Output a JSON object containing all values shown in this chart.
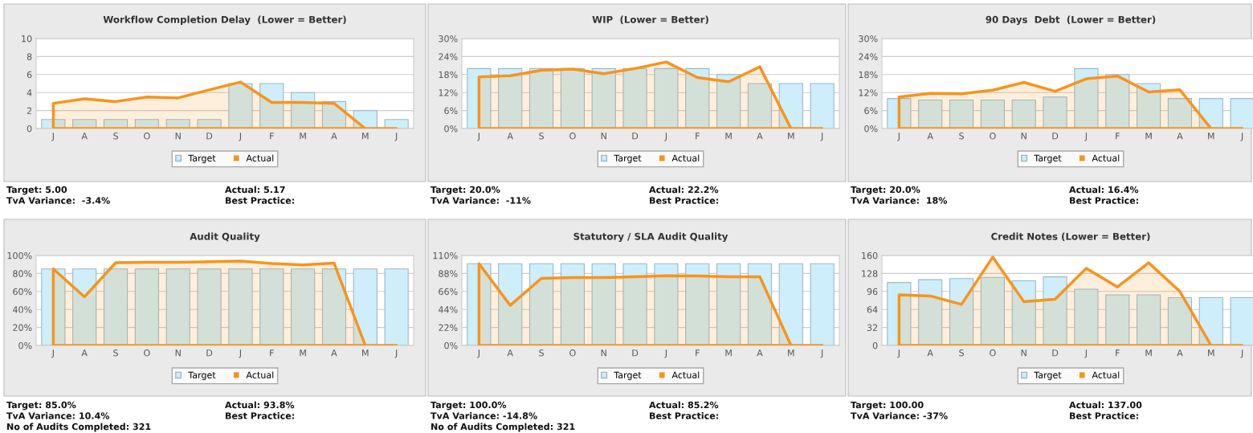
{
  "chart_data": [
    {
      "type": "bar",
      "title": "Workflow Completion Delay  (Lower = Better)",
      "categories": [
        "J",
        "A",
        "S",
        "O",
        "N",
        "D",
        "J",
        "F",
        "M",
        "A",
        "M",
        "J"
      ],
      "ylim": [
        0,
        10
      ],
      "yticks": [
        0,
        2,
        4,
        6,
        8,
        10
      ],
      "grid": "y",
      "legend": "bottom",
      "series": [
        {
          "name": "Target",
          "color": "#cdeefa",
          "values": [
            1,
            1,
            1,
            1,
            1,
            1,
            5,
            5,
            4,
            3,
            2,
            1
          ]
        },
        {
          "name": "Actual",
          "type": "area",
          "color": "#f7941d",
          "values": [
            2.8,
            3.3,
            3.0,
            3.5,
            3.4,
            4.3,
            5.17,
            2.9,
            2.9,
            2.8,
            0,
            0
          ]
        }
      ],
      "annotations": [
        "Target: 5.00",
        "Actual: 5.17",
        "TvA Variance:  -3.4%",
        "Best Practice:"
      ]
    },
    {
      "type": "bar",
      "title": "WIP  (Lower = Better)",
      "categories": [
        "J",
        "A",
        "S",
        "O",
        "N",
        "D",
        "J",
        "F",
        "M",
        "A",
        "M",
        "J"
      ],
      "ylim": [
        0,
        30
      ],
      "yticks": [
        {
          "value": 0,
          "label": "0%"
        },
        {
          "value": 6,
          "label": "6%"
        },
        {
          "value": 12,
          "label": "12%"
        },
        {
          "value": 18,
          "label": "18%"
        },
        {
          "value": 24,
          "label": "24%"
        },
        {
          "value": 30,
          "label": "30%"
        }
      ],
      "grid": "y",
      "legend": "bottom",
      "series": [
        {
          "name": "Target",
          "color": "#cdeefa",
          "values": [
            20,
            20,
            20,
            20,
            20,
            20,
            20,
            20,
            18,
            15,
            15,
            15
          ]
        },
        {
          "name": "Actual",
          "type": "area",
          "color": "#f7941d",
          "values": [
            17.2,
            17.6,
            19.4,
            19.8,
            18.3,
            20,
            22.2,
            17,
            15.6,
            20.6,
            0,
            0
          ]
        }
      ],
      "annotations": [
        "Target: 20.0%",
        "Actual: 22.2%",
        "TvA Variance:  -11%",
        "Best Practice:"
      ]
    },
    {
      "type": "bar",
      "title": "90 Days  Debt  (Lower = Better)",
      "categories": [
        "J",
        "A",
        "S",
        "O",
        "N",
        "D",
        "J",
        "F",
        "M",
        "A",
        "M",
        "J"
      ],
      "ylim": [
        0,
        30
      ],
      "yticks": [
        {
          "value": 0,
          "label": "0%"
        },
        {
          "value": 6,
          "label": "6%"
        },
        {
          "value": 12,
          "label": "12%"
        },
        {
          "value": 18,
          "label": "18%"
        },
        {
          "value": 24,
          "label": "24%"
        },
        {
          "value": 30,
          "label": "30%"
        }
      ],
      "grid": "y",
      "legend": "bottom",
      "series": [
        {
          "name": "Target",
          "color": "#cdeefa",
          "values": [
            10,
            9.5,
            9.5,
            9.5,
            9.5,
            10.5,
            20,
            18,
            15,
            10,
            10,
            10
          ]
        },
        {
          "name": "Actual",
          "type": "area",
          "color": "#f7941d",
          "values": [
            10.5,
            11.7,
            11.6,
            12.8,
            15.4,
            12.4,
            16.6,
            17.5,
            12.2,
            12.9,
            0,
            0
          ]
        }
      ],
      "annotations": [
        "Target: 20.0%",
        "Actual: 16.4%",
        "TvA Variance:  18%",
        "Best Practice:"
      ]
    },
    {
      "type": "bar",
      "title": "Audit Quality",
      "categories": [
        "J",
        "A",
        "S",
        "O",
        "N",
        "D",
        "J",
        "F",
        "M",
        "A",
        "M",
        "J"
      ],
      "ylim": [
        0,
        100
      ],
      "yticks": [
        {
          "value": 0,
          "label": "0%"
        },
        {
          "value": 20,
          "label": "20%"
        },
        {
          "value": 40,
          "label": "40%"
        },
        {
          "value": 60,
          "label": "60%"
        },
        {
          "value": 80,
          "label": "80%"
        },
        {
          "value": 100,
          "label": "100%"
        }
      ],
      "grid": "y",
      "legend": "bottom",
      "series": [
        {
          "name": "Target",
          "color": "#cdeefa",
          "values": [
            85,
            85,
            85,
            85,
            85,
            85,
            85,
            85,
            85,
            85,
            85,
            85
          ]
        },
        {
          "name": "Actual",
          "type": "area",
          "color": "#f7941d",
          "values": [
            85,
            54,
            92,
            92.5,
            92.5,
            93,
            93.8,
            91,
            89.5,
            91.5,
            0,
            0
          ]
        }
      ],
      "annotations": [
        "Target: 85.0%",
        "Actual: 93.8%",
        "TvA Variance: 10.4%",
        "Best Practice:",
        "No of Audits Completed: 321"
      ]
    },
    {
      "type": "bar",
      "title": "Statutory / SLA Audit Quality",
      "categories": [
        "J",
        "A",
        "S",
        "O",
        "N",
        "D",
        "J",
        "F",
        "M",
        "A",
        "M",
        "J"
      ],
      "ylim": [
        0,
        110
      ],
      "yticks": [
        {
          "value": 0,
          "label": "0%"
        },
        {
          "value": 22,
          "label": "22%"
        },
        {
          "value": 44,
          "label": "44%"
        },
        {
          "value": 66,
          "label": "66%"
        },
        {
          "value": 88,
          "label": "88%"
        },
        {
          "value": 110,
          "label": "110%"
        }
      ],
      "grid": "y",
      "legend": "bottom",
      "series": [
        {
          "name": "Target",
          "color": "#cdeefa",
          "values": [
            100,
            100,
            100,
            100,
            100,
            100,
            100,
            100,
            100,
            100,
            100,
            100
          ]
        },
        {
          "name": "Actual",
          "type": "area",
          "color": "#f7941d",
          "values": [
            100,
            49,
            82,
            83,
            83,
            84,
            85.2,
            85,
            84,
            84,
            0,
            0
          ]
        }
      ],
      "annotations": [
        "Target: 100.0%",
        "Actual: 85.2%",
        "TvA Variance: -14.8%",
        "Best Practice:",
        "No of Audits Completed: 321"
      ]
    },
    {
      "type": "bar",
      "title": "Credit Notes (Lower = Better)",
      "categories": [
        "J",
        "A",
        "S",
        "O",
        "N",
        "D",
        "J",
        "F",
        "M",
        "A",
        "M",
        "J"
      ],
      "ylim": [
        0,
        160
      ],
      "yticks": [
        0,
        32,
        64,
        96,
        128,
        160
      ],
      "grid": "y",
      "legend": "bottom",
      "series": [
        {
          "name": "Target",
          "color": "#cdeefa",
          "values": [
            112,
            117,
            119,
            121,
            115,
            122,
            100,
            90,
            90,
            85,
            85,
            85
          ]
        },
        {
          "name": "Actual",
          "type": "area",
          "color": "#f7941d",
          "values": [
            90,
            88,
            73,
            157,
            78,
            82,
            137,
            104,
            147,
            96,
            0,
            0
          ]
        }
      ],
      "annotations": [
        "Target: 100.00",
        "Actual: 137.00",
        "TvA Variance: -37%",
        "Best Practice:"
      ]
    }
  ]
}
